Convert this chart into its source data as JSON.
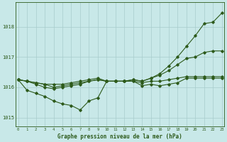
{
  "title": "Graphe pression niveau de la mer (hPa)",
  "xlabel_hours": [
    0,
    1,
    2,
    3,
    4,
    5,
    6,
    7,
    8,
    9,
    10,
    11,
    12,
    13,
    14,
    15,
    16,
    17,
    18,
    19,
    20,
    21,
    22,
    23
  ],
  "line_flat": [
    1016.25,
    1016.2,
    1016.15,
    1016.1,
    1016.1,
    1016.1,
    1016.15,
    1016.2,
    1016.25,
    1016.3,
    1016.2,
    1016.2,
    1016.2,
    1016.2,
    1016.15,
    1016.2,
    1016.2,
    1016.25,
    1016.3,
    1016.35,
    1016.35,
    1016.35,
    1016.35,
    1016.35
  ],
  "line_zigzag": [
    1016.25,
    1015.9,
    1015.8,
    1015.7,
    1015.55,
    1015.45,
    1015.4,
    1015.25,
    1015.55,
    1015.65,
    1016.2,
    1016.2,
    1016.2,
    1016.2,
    1016.05,
    1016.1,
    1016.05,
    1016.1,
    1016.15,
    1016.3,
    1016.3,
    1016.3,
    1016.3,
    1016.3
  ],
  "line_rise1": [
    1016.25,
    1016.2,
    1016.15,
    1016.1,
    1016.0,
    1016.05,
    1016.1,
    1016.15,
    1016.2,
    1016.25,
    1016.2,
    1016.2,
    1016.2,
    1016.25,
    1016.2,
    1016.3,
    1016.4,
    1016.55,
    1016.75,
    1016.95,
    1017.0,
    1017.15,
    1017.2,
    1017.2
  ],
  "line_rise2": [
    1016.25,
    1016.2,
    1016.1,
    1016.0,
    1015.95,
    1016.0,
    1016.05,
    1016.1,
    1016.2,
    1016.25,
    1016.2,
    1016.2,
    1016.2,
    1016.25,
    1016.2,
    1016.3,
    1016.45,
    1016.7,
    1017.0,
    1017.35,
    1017.7,
    1018.1,
    1018.15,
    1018.45
  ],
  "ylim": [
    1014.7,
    1018.8
  ],
  "yticks": [
    1015,
    1016,
    1017,
    1018
  ],
  "xlim": [
    -0.3,
    23.3
  ],
  "bg_color": "#c8e8e8",
  "line_color": "#2d5a1b",
  "grid_color": "#a8cccc",
  "text_color": "#2d5a1b",
  "marker": "D",
  "markersize": 1.8,
  "linewidth": 0.8
}
